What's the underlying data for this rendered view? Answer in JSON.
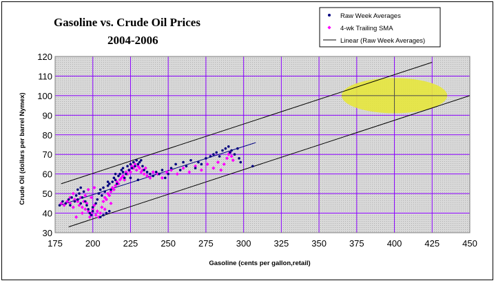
{
  "chart_data": {
    "type": "scatter",
    "title": "Gasoline vs. Crude Oil Prices",
    "subtitle": "2004-2006",
    "xlabel": "Gasoline (cents per gallon,retail)",
    "ylabel": "Crude Oil (dollars per barrel Nymex)",
    "xlim": [
      175,
      450
    ],
    "ylim": [
      30,
      120
    ],
    "xticks": [
      175,
      200,
      225,
      250,
      275,
      300,
      325,
      350,
      375,
      400,
      425,
      450
    ],
    "yticks": [
      30,
      40,
      50,
      60,
      70,
      80,
      90,
      100,
      110,
      120
    ],
    "grid": true,
    "legend_position": "top-right",
    "legend": [
      "Raw Week Averages",
      "4-wk Trailing SMA",
      "Linear (Raw Week Averages)"
    ],
    "colors": {
      "raw": "#000080",
      "sma": "#ff00ff",
      "trend": "#000080",
      "bands": "#000000",
      "ellipse": "#e6e63c",
      "grid": "#8b00ff",
      "plot_bg": "#d9d9d9"
    },
    "series": [
      {
        "name": "Raw Week Averages",
        "marker": "dot",
        "points": [
          [
            178,
            44
          ],
          [
            180,
            46
          ],
          [
            182,
            45
          ],
          [
            184,
            47
          ],
          [
            185,
            44
          ],
          [
            186,
            48
          ],
          [
            188,
            46
          ],
          [
            189,
            49
          ],
          [
            190,
            47
          ],
          [
            191,
            50
          ],
          [
            192,
            45
          ],
          [
            193,
            48
          ],
          [
            194,
            51
          ],
          [
            195,
            46
          ],
          [
            196,
            44
          ],
          [
            197,
            42
          ],
          [
            198,
            40
          ],
          [
            199,
            39
          ],
          [
            200,
            41
          ],
          [
            202,
            45
          ],
          [
            203,
            47
          ],
          [
            204,
            50
          ],
          [
            205,
            52
          ],
          [
            206,
            49
          ],
          [
            207,
            53
          ],
          [
            208,
            51
          ],
          [
            210,
            54
          ],
          [
            211,
            55
          ],
          [
            212,
            52
          ],
          [
            213,
            56
          ],
          [
            214,
            58
          ],
          [
            215,
            57
          ],
          [
            216,
            55
          ],
          [
            217,
            59
          ],
          [
            218,
            60
          ],
          [
            219,
            62
          ],
          [
            220,
            63
          ],
          [
            221,
            58
          ],
          [
            222,
            60
          ],
          [
            223,
            64
          ],
          [
            224,
            62
          ],
          [
            225,
            65
          ],
          [
            226,
            63
          ],
          [
            227,
            66
          ],
          [
            228,
            64
          ],
          [
            229,
            67
          ],
          [
            230,
            65
          ],
          [
            231,
            66
          ],
          [
            232,
            67
          ],
          [
            233,
            64
          ],
          [
            234,
            62
          ],
          [
            236,
            61
          ],
          [
            238,
            60
          ],
          [
            240,
            59
          ],
          [
            242,
            61
          ],
          [
            244,
            60
          ],
          [
            246,
            62
          ],
          [
            248,
            58
          ],
          [
            250,
            60
          ],
          [
            252,
            63
          ],
          [
            255,
            65
          ],
          [
            258,
            62
          ],
          [
            260,
            66
          ],
          [
            262,
            64
          ],
          [
            265,
            67
          ],
          [
            268,
            63
          ],
          [
            270,
            66
          ],
          [
            272,
            65
          ],
          [
            275,
            68
          ],
          [
            278,
            69
          ],
          [
            280,
            70
          ],
          [
            282,
            71
          ],
          [
            284,
            69
          ],
          [
            286,
            72
          ],
          [
            288,
            73
          ],
          [
            290,
            74
          ],
          [
            291,
            71
          ],
          [
            292,
            72
          ],
          [
            294,
            70
          ],
          [
            296,
            73
          ],
          [
            297,
            68
          ],
          [
            298,
            66
          ],
          [
            306,
            64
          ],
          [
            205,
            38
          ],
          [
            207,
            39
          ],
          [
            209,
            40
          ],
          [
            211,
            41
          ],
          [
            190,
            52
          ],
          [
            192,
            53
          ],
          [
            210,
            56
          ],
          [
            215,
            60
          ],
          [
            220,
            61
          ],
          [
            225,
            58
          ],
          [
            230,
            57
          ],
          [
            200,
            43
          ]
        ]
      },
      {
        "name": "4-wk Trailing SMA",
        "marker": "diamond",
        "points": [
          [
            179,
            45
          ],
          [
            181,
            44
          ],
          [
            183,
            46
          ],
          [
            185,
            45
          ],
          [
            187,
            43
          ],
          [
            188,
            47
          ],
          [
            190,
            46
          ],
          [
            191,
            44
          ],
          [
            192,
            48
          ],
          [
            193,
            43
          ],
          [
            194,
            46
          ],
          [
            195,
            42
          ],
          [
            196,
            45
          ],
          [
            197,
            41
          ],
          [
            198,
            38
          ],
          [
            199,
            40
          ],
          [
            200,
            42
          ],
          [
            201,
            44
          ],
          [
            202,
            39
          ],
          [
            203,
            41
          ],
          [
            204,
            38
          ],
          [
            205,
            40
          ],
          [
            206,
            43
          ],
          [
            207,
            46
          ],
          [
            208,
            48
          ],
          [
            209,
            47
          ],
          [
            210,
            50
          ],
          [
            211,
            49
          ],
          [
            212,
            51
          ],
          [
            213,
            53
          ],
          [
            214,
            52
          ],
          [
            215,
            54
          ],
          [
            216,
            56
          ],
          [
            217,
            55
          ],
          [
            218,
            57
          ],
          [
            219,
            58
          ],
          [
            220,
            59
          ],
          [
            221,
            57
          ],
          [
            222,
            61
          ],
          [
            223,
            60
          ],
          [
            224,
            62
          ],
          [
            225,
            61
          ],
          [
            226,
            64
          ],
          [
            227,
            63
          ],
          [
            228,
            65
          ],
          [
            229,
            62
          ],
          [
            230,
            64
          ],
          [
            231,
            63
          ],
          [
            232,
            61
          ],
          [
            233,
            62
          ],
          [
            234,
            60
          ],
          [
            235,
            63
          ],
          [
            236,
            59
          ],
          [
            238,
            58
          ],
          [
            240,
            61
          ],
          [
            243,
            60
          ],
          [
            246,
            58
          ],
          [
            249,
            61
          ],
          [
            252,
            62
          ],
          [
            256,
            60
          ],
          [
            260,
            63
          ],
          [
            264,
            61
          ],
          [
            268,
            64
          ],
          [
            272,
            62
          ],
          [
            276,
            65
          ],
          [
            280,
            63
          ],
          [
            283,
            66
          ],
          [
            285,
            62
          ],
          [
            287,
            65
          ],
          [
            289,
            68
          ],
          [
            290,
            70
          ],
          [
            291,
            71
          ],
          [
            292,
            69
          ],
          [
            293,
            67
          ],
          [
            189,
            38
          ],
          [
            193,
            40
          ],
          [
            195,
            49
          ],
          [
            197,
            52
          ],
          [
            199,
            48
          ],
          [
            201,
            53
          ],
          [
            185,
            48
          ],
          [
            187,
            50
          ],
          [
            208,
            42
          ],
          [
            212,
            45
          ]
        ]
      }
    ],
    "lines": [
      {
        "name": "Linear (Raw Week Averages)",
        "from": [
          178,
          44
        ],
        "to": [
          308,
          76
        ]
      },
      {
        "name": "upper-band",
        "from": [
          179,
          55
        ],
        "to": [
          425,
          117
        ]
      },
      {
        "name": "lower-band",
        "from": [
          184,
          33
        ],
        "to": [
          450,
          100
        ]
      }
    ],
    "annotations": [
      {
        "type": "ellipse",
        "center": [
          400,
          100
        ],
        "rx": 35,
        "ry": 9
      },
      {
        "type": "crosshair",
        "center": [
          400,
          100
        ],
        "x_range": [
          365,
          435
        ],
        "y_range": [
          91,
          109
        ]
      }
    ]
  }
}
